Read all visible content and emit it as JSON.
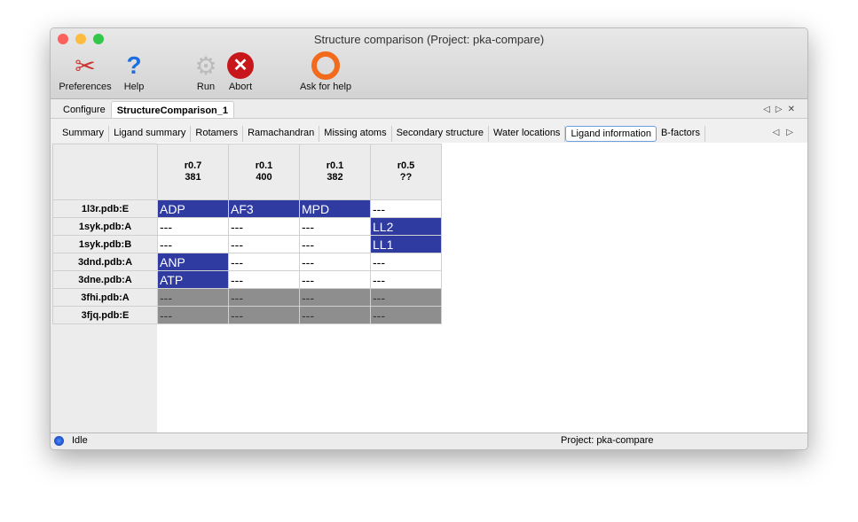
{
  "window": {
    "title": "Structure comparison (Project: pka-compare)"
  },
  "toolbar": [
    {
      "label": "Preferences",
      "icon": "tools-icon"
    },
    {
      "label": "Help",
      "icon": "help-icon"
    },
    {
      "label": "Run",
      "icon": "gear-icon"
    },
    {
      "label": "Abort",
      "icon": "abort-icon"
    },
    {
      "label": "Ask for help",
      "icon": "lifebuoy-icon"
    }
  ],
  "tabs": [
    "Configure",
    "StructureComparison_1"
  ],
  "subtabs": [
    "Summary",
    "Ligand summary",
    "Rotamers",
    "Ramachandran",
    "Missing atoms",
    "Secondary structure",
    "Water locations",
    "Ligand information",
    "B-factors"
  ],
  "table": {
    "columns": [
      {
        "l1": "r0.7",
        "l2": "381"
      },
      {
        "l1": "r0.1",
        "l2": "400"
      },
      {
        "l1": "r0.1",
        "l2": "382"
      },
      {
        "l1": "r0.5",
        "l2": "??"
      }
    ],
    "rows": [
      {
        "label": "1l3r.pdb:E",
        "cells": [
          "ADP",
          "AF3",
          "MPD",
          "---"
        ],
        "state": "normal"
      },
      {
        "label": "1syk.pdb:A",
        "cells": [
          "---",
          "---",
          "---",
          "LL2"
        ],
        "state": "normal"
      },
      {
        "label": "1syk.pdb:B",
        "cells": [
          "---",
          "---",
          "---",
          "LL1"
        ],
        "state": "normal"
      },
      {
        "label": "3dnd.pdb:A",
        "cells": [
          "ANP",
          "---",
          "---",
          "---"
        ],
        "state": "normal"
      },
      {
        "label": "3dne.pdb:A",
        "cells": [
          "ATP",
          "---",
          "---",
          "---"
        ],
        "state": "normal"
      },
      {
        "label": "3fhi.pdb:A",
        "cells": [
          "---",
          "---",
          "---",
          "---"
        ],
        "state": "missing"
      },
      {
        "label": "3fjq.pdb:E",
        "cells": [
          "---",
          "---",
          "---",
          "---"
        ],
        "state": "missing"
      }
    ]
  },
  "status": {
    "text": "Idle",
    "project": "Project: pka-compare"
  },
  "colors": {
    "hit": "#2f3ba1",
    "missing": "#8e8e8e"
  }
}
